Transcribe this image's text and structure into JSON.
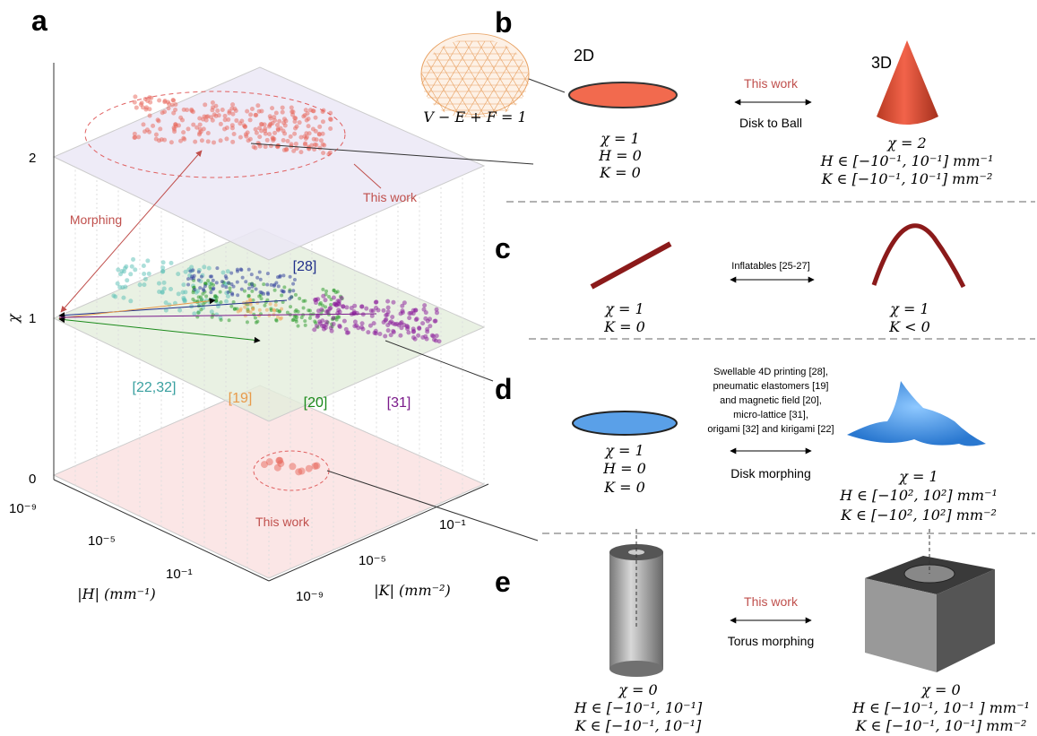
{
  "panel_a": {
    "label": "a",
    "z_label": "χ",
    "z_ticks": [
      "0",
      "1",
      "2"
    ],
    "h_label": "|H| (mm⁻¹)",
    "h_ticks": [
      "10⁻⁹",
      "10⁻⁵",
      "10⁻¹"
    ],
    "k_label": "|K| (mm⁻²)",
    "k_ticks": [
      "10⁻¹",
      "10⁻⁵",
      "10⁻⁹"
    ],
    "annotations": [
      "This work",
      "Morphing",
      "[28]",
      "[22,32]",
      "[19]",
      "[20]",
      "[31]",
      "This work"
    ]
  },
  "panel_b": {
    "label": "b",
    "left_title": "2D",
    "right_title": "3D",
    "euler": "V − E + F = 1",
    "arrow_top": "This work",
    "arrow_bottom": "Disk to Ball",
    "left": [
      "χ = 1",
      "H = 0",
      "K = 0"
    ],
    "right": [
      "χ = 2",
      "H ∈ [−10⁻¹, 10⁻¹] mm⁻¹",
      "K ∈ [−10⁻¹, 10⁻¹]  mm⁻²"
    ]
  },
  "panel_c": {
    "label": "c",
    "arrow_top": "Inflatables [25-27]",
    "left": [
      "χ = 1",
      "K = 0"
    ],
    "right": [
      "χ = 1",
      "K < 0"
    ]
  },
  "panel_d": {
    "label": "d",
    "arrow_top": [
      "Swellable 4D printing [28],",
      "pneumatic elastomers [19]",
      "and magnetic field [20],",
      "micro-lattice [31],",
      "origami [32] and kirigami [22]"
    ],
    "arrow_bottom": "Disk morphing",
    "left": [
      "χ = 1",
      "H = 0",
      "K = 0"
    ],
    "right": [
      "χ = 1",
      "H ∈ [−10², 10²] mm⁻¹",
      "K ∈ [−10², 10²] mm⁻²"
    ]
  },
  "panel_e": {
    "label": "e",
    "arrow_top": "This work",
    "arrow_bottom": "Torus morphing",
    "left": [
      "χ = 0",
      "H ∈ [−10⁻¹, 10⁻¹]",
      "K ∈ [−10⁻¹, 10⁻¹]"
    ],
    "right": [
      "χ = 0",
      "H ∈ [−10⁻¹, 10⁻¹ ] mm⁻¹",
      "K ∈ [−10⁻¹, 10⁻¹] mm⁻²"
    ]
  }
}
